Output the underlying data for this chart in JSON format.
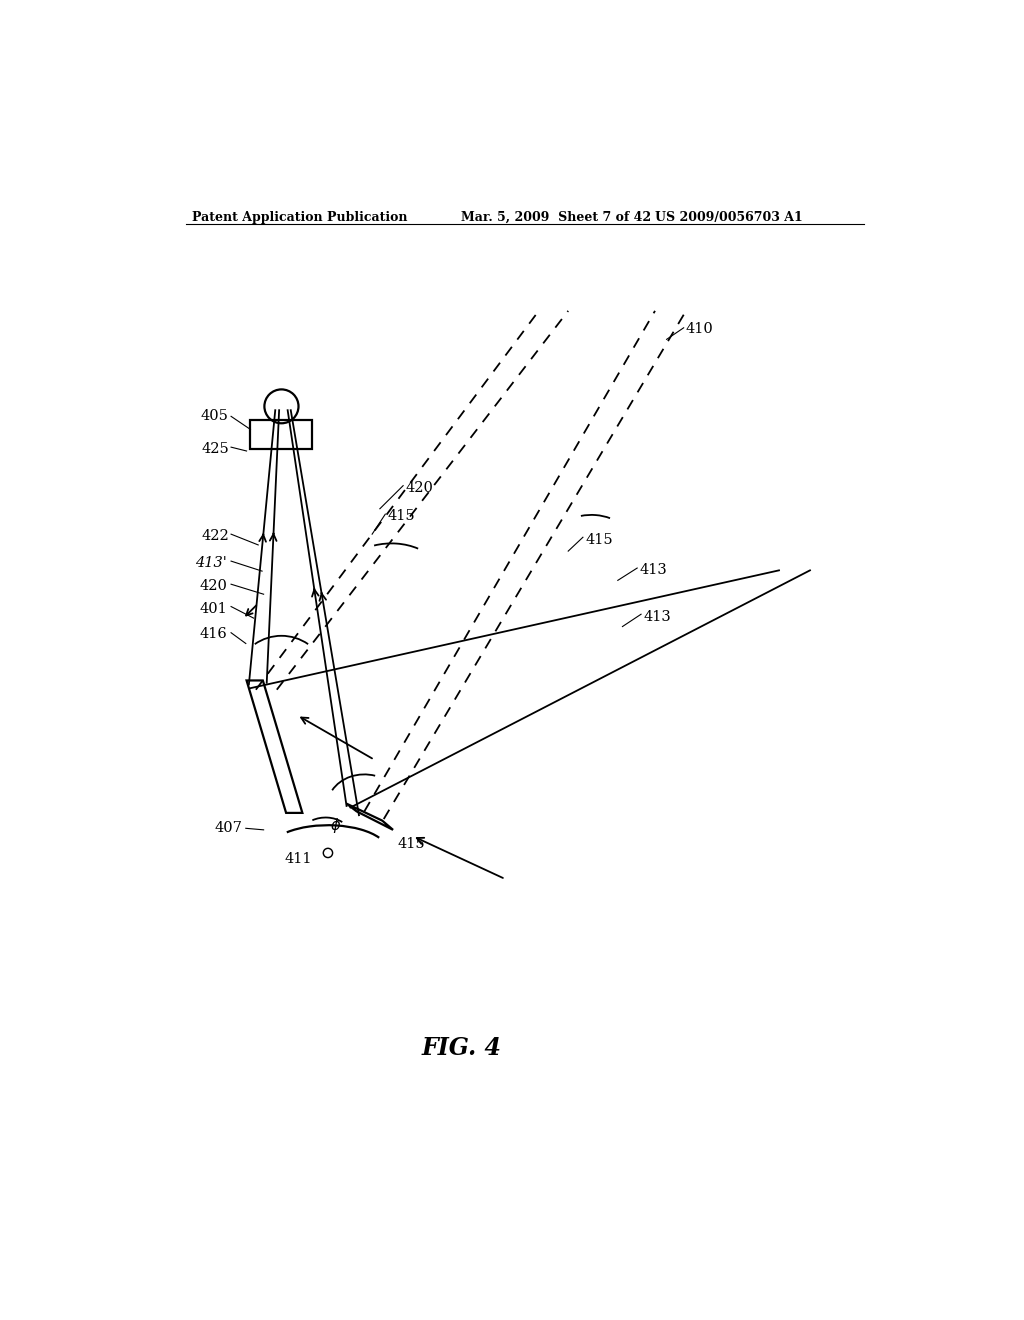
{
  "bg_color": "#ffffff",
  "header_left": "Patent Application Publication",
  "header_mid": "Mar. 5, 2009  Sheet 7 of 42",
  "header_right": "US 2009/0056703 A1",
  "fig_label": "FIG. 4",
  "lw": 1.3,
  "lw_thick": 1.6
}
